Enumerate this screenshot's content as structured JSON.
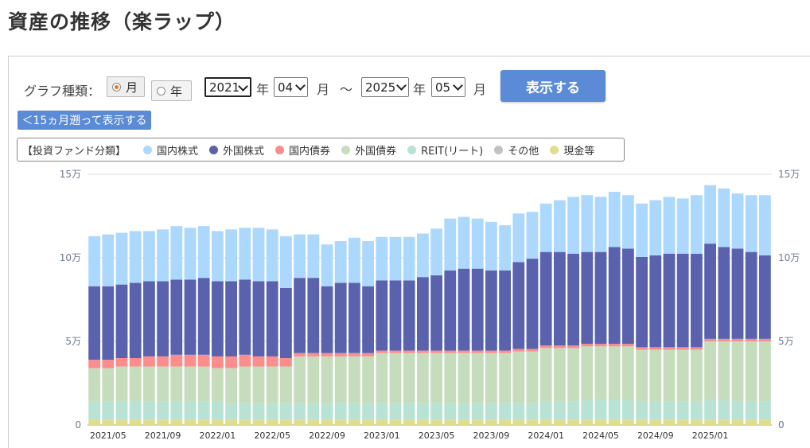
{
  "page": {
    "title": "資産の推移（楽ラップ）"
  },
  "controls": {
    "graph_type_label": "グラフ種類：",
    "radio_month": "月",
    "radio_year": "年",
    "selected_radio": "月",
    "from_year": "2021",
    "year_unit": "年",
    "from_month": "04",
    "month_unit": "月",
    "range_sep": "～",
    "to_year": "2025",
    "to_month": "05",
    "show_button": "表示する",
    "back_button": "＜15ヵ月遡って表示する"
  },
  "legend": {
    "title": "【投資ファンド分類】",
    "items": [
      {
        "label": "国内株式",
        "color": "#add8fe"
      },
      {
        "label": "外国株式",
        "color": "#5a62ad"
      },
      {
        "label": "国内債券",
        "color": "#fd8c8c"
      },
      {
        "label": "外国債券",
        "color": "#c6ddbd"
      },
      {
        "label": "REIT(リート)",
        "color": "#b8e3d4"
      },
      {
        "label": "その他",
        "color": "#c2c2c2"
      },
      {
        "label": "現金等",
        "color": "#dede8c"
      }
    ]
  },
  "chart_data": {
    "type": "bar",
    "stacked": true,
    "categories": [
      "2021/04",
      "2021/05",
      "2021/06",
      "2021/07",
      "2021/08",
      "2021/09",
      "2021/10",
      "2021/11",
      "2021/12",
      "2022/01",
      "2022/02",
      "2022/03",
      "2022/04",
      "2022/05",
      "2022/06",
      "2022/07",
      "2022/08",
      "2022/09",
      "2022/10",
      "2022/11",
      "2022/12",
      "2023/01",
      "2023/02",
      "2023/03",
      "2023/04",
      "2023/05",
      "2023/06",
      "2023/07",
      "2023/08",
      "2023/09",
      "2023/10",
      "2023/11",
      "2023/12",
      "2024/01",
      "2024/02",
      "2024/03",
      "2024/04",
      "2024/05",
      "2024/06",
      "2024/07",
      "2024/08",
      "2024/09",
      "2024/10",
      "2024/11",
      "2024/12",
      "2025/01",
      "2025/02",
      "2025/03",
      "2025/04",
      "2025/05"
    ],
    "xtick_labels": [
      "2021/05",
      "2021/09",
      "2022/01",
      "2022/05",
      "2022/09",
      "2023/01",
      "2023/05",
      "2023/09",
      "2024/01",
      "2024/05",
      "2024/09",
      "2025/01"
    ],
    "yticks": [
      "0",
      "5万",
      "10万",
      "15万"
    ],
    "ylim": [
      0,
      150000
    ],
    "grid": true,
    "series": [
      {
        "name": "現金等",
        "color": "#dede8c",
        "values": [
          3000,
          3000,
          3000,
          3000,
          3000,
          3000,
          3000,
          3000,
          3000,
          3000,
          3000,
          3000,
          3000,
          3000,
          3000,
          3000,
          3000,
          3000,
          3000,
          3000,
          3000,
          3000,
          3000,
          3000,
          3000,
          3000,
          3000,
          3000,
          3000,
          3000,
          3000,
          3000,
          3000,
          3000,
          3000,
          3000,
          3000,
          3000,
          3000,
          3000,
          3000,
          3000,
          3000,
          3000,
          3000,
          3000,
          3000,
          3000,
          3000,
          3000
        ]
      },
      {
        "name": "REIT(リート)",
        "color": "#b8e3d4",
        "values": [
          11000,
          11000,
          11000,
          11000,
          11000,
          11000,
          11000,
          11000,
          11000,
          11000,
          10000,
          10000,
          10000,
          10000,
          10000,
          10000,
          10000,
          10000,
          10000,
          10000,
          10000,
          10000,
          10000,
          10000,
          10000,
          10000,
          10000,
          10000,
          10000,
          10000,
          10000,
          10000,
          10000,
          11000,
          11000,
          11000,
          12000,
          12000,
          12000,
          12000,
          11000,
          11000,
          11000,
          11000,
          11000,
          12000,
          12000,
          11000,
          11000,
          11000
        ]
      },
      {
        "name": "外国債券",
        "color": "#c6ddbd",
        "values": [
          20000,
          20000,
          21000,
          21000,
          21000,
          21000,
          21000,
          21000,
          21000,
          20000,
          21000,
          22000,
          22000,
          22000,
          22000,
          28000,
          28000,
          28000,
          28000,
          28000,
          28000,
          30000,
          30000,
          30000,
          30000,
          30000,
          30000,
          30000,
          30000,
          30000,
          30000,
          31000,
          31000,
          32000,
          32000,
          32000,
          32000,
          32000,
          32000,
          32000,
          31000,
          31000,
          31000,
          31000,
          31000,
          35000,
          35000,
          36000,
          36000,
          36000
        ]
      },
      {
        "name": "国内債券",
        "color": "#fd8c8c",
        "values": [
          5000,
          5000,
          5000,
          5000,
          6000,
          6000,
          7000,
          7000,
          7000,
          7000,
          7000,
          7000,
          6000,
          6000,
          5000,
          2000,
          2000,
          2000,
          2000,
          2000,
          2000,
          1500,
          1500,
          1500,
          1500,
          1500,
          1500,
          1500,
          1500,
          1500,
          1500,
          1500,
          1500,
          1500,
          1500,
          1500,
          1500,
          1500,
          1500,
          1500,
          1500,
          1500,
          1500,
          1500,
          1500,
          1500,
          1500,
          1500,
          1500,
          1500
        ]
      },
      {
        "name": "外国株式",
        "color": "#5a62ad",
        "values": [
          44000,
          44000,
          44000,
          45000,
          45000,
          45000,
          45000,
          45000,
          46000,
          45000,
          45000,
          45000,
          45000,
          45000,
          42000,
          45000,
          45000,
          40000,
          42000,
          42000,
          40000,
          42000,
          42000,
          42000,
          44000,
          45000,
          48000,
          49000,
          49000,
          48000,
          48000,
          52000,
          54000,
          56000,
          56000,
          55000,
          55000,
          55000,
          58000,
          57000,
          54000,
          55000,
          56000,
          56000,
          56000,
          57000,
          55000,
          54000,
          52000,
          50000
        ]
      },
      {
        "name": "国内株式",
        "color": "#add8fe",
        "values": [
          30000,
          31000,
          31000,
          31000,
          30000,
          31000,
          32000,
          31000,
          31000,
          30000,
          31000,
          31000,
          32000,
          31000,
          31000,
          26000,
          26000,
          25000,
          25000,
          27000,
          27000,
          26000,
          26000,
          26000,
          26000,
          28000,
          31000,
          31000,
          30000,
          29000,
          27000,
          29000,
          28000,
          29000,
          31000,
          34000,
          34000,
          33000,
          33000,
          32000,
          32000,
          33000,
          34000,
          33000,
          35000,
          35000,
          35000,
          33000,
          34000,
          36000
        ]
      }
    ]
  }
}
